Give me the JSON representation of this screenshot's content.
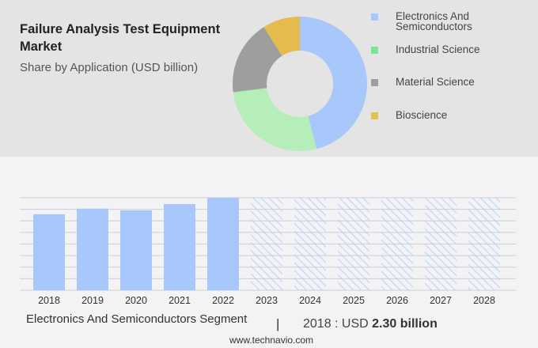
{
  "chart_data": [
    {
      "type": "pie",
      "subtype": "donut",
      "title": "Failure Analysis Test Equipment Market",
      "subtitle": "Share by Application (USD billion)",
      "legend_placement": "right",
      "slices": [
        {
          "label": "Electronics And Semiconductors",
          "value": 46,
          "color": "#a8c8fb"
        },
        {
          "label": "Industrial Science",
          "value": 27,
          "color": "#b5eeb8"
        },
        {
          "label": "Material Science",
          "value": 18,
          "color": "#9e9e9e"
        },
        {
          "label": "Bioscience",
          "value": 9,
          "color": "#e5bb4e"
        }
      ],
      "legend_colors": [
        "#a8c8fb",
        "#7ee39a",
        "#9e9e9e",
        "#e0c24e"
      ]
    },
    {
      "type": "bar",
      "categories": [
        "2018",
        "2019",
        "2020",
        "2021",
        "2022",
        "2023",
        "2024",
        "2025",
        "2026",
        "2027",
        "2028"
      ],
      "values": [
        2.3,
        2.47,
        2.42,
        2.61,
        2.8,
        null,
        null,
        null,
        null,
        null,
        null
      ],
      "forecast_years": [
        "2023",
        "2024",
        "2025",
        "2026",
        "2027",
        "2028"
      ],
      "forecast_style": "hatched",
      "color": "#a8c8fb",
      "grid": true,
      "ylim": [
        0,
        2.8
      ]
    }
  ],
  "footer": {
    "segment": "Electronics And Semiconductors Segment",
    "separator": "|",
    "year_label": "2018 : USD ",
    "value": "2.30 billion",
    "site": "www.technavio.com"
  }
}
